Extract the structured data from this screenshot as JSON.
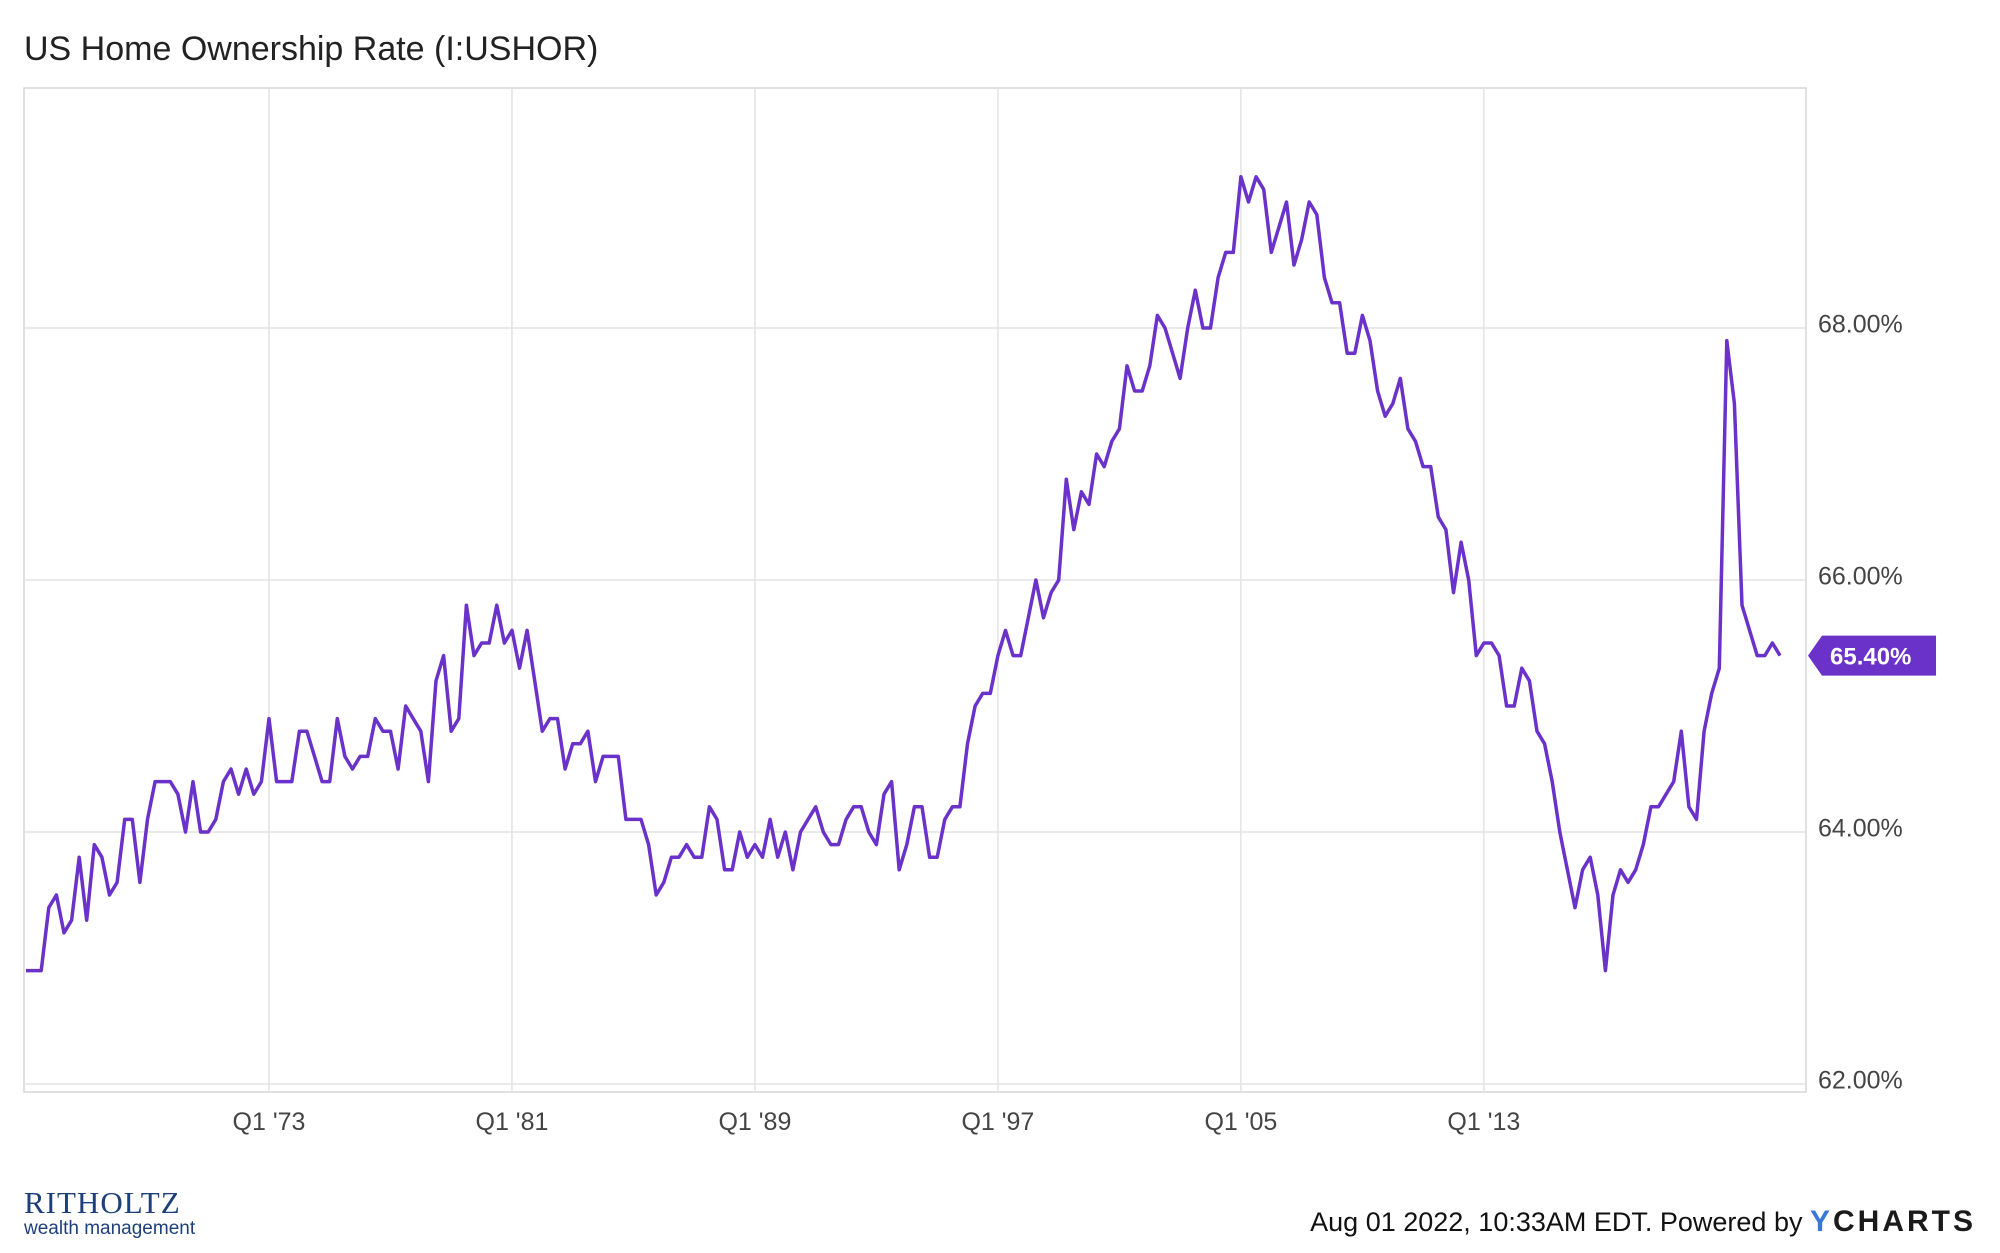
{
  "title": "US Home Ownership Rate (I:USHOR)",
  "footer": {
    "timestamp": "Aug 01 2022, 10:33AM EDT. Powered by",
    "brand_y": "Y",
    "brand_rest": "CHARTS"
  },
  "logo": {
    "name": "RITHOLTZ",
    "tagline": "wealth management"
  },
  "chart_data": {
    "type": "line",
    "x_start": "Q1 '65",
    "x_step": "quarter",
    "xticks": [
      "Q1 '73",
      "Q1 '81",
      "Q1 '89",
      "Q1 '97",
      "Q1 '05",
      "Q1 '13"
    ],
    "xtick_index": [
      32,
      64,
      96,
      128,
      160,
      192
    ],
    "yticks": [
      "62.00%",
      "64.00%",
      "66.00%",
      "68.00%"
    ],
    "ytick_values": [
      62,
      64,
      66,
      68
    ],
    "ylim": [
      62,
      70
    ],
    "grid": true,
    "line_color": "#6a32c9",
    "last_value_label": "65.40%",
    "series": [
      {
        "values": [
          62.9,
          62.9,
          62.9,
          63.4,
          63.5,
          63.2,
          63.3,
          63.8,
          63.3,
          63.9,
          63.8,
          63.5,
          63.6,
          64.1,
          64.1,
          63.6,
          64.1,
          64.4,
          64.4,
          64.4,
          64.3,
          64.0,
          64.4,
          64.0,
          64.0,
          64.1,
          64.4,
          64.5,
          64.3,
          64.5,
          64.3,
          64.4,
          64.9,
          64.4,
          64.4,
          64.4,
          64.8,
          64.8,
          64.6,
          64.4,
          64.4,
          64.9,
          64.6,
          64.5,
          64.6,
          64.6,
          64.9,
          64.8,
          64.8,
          64.5,
          65.0,
          64.9,
          64.8,
          64.4,
          65.2,
          65.4,
          64.8,
          64.9,
          65.8,
          65.4,
          65.5,
          65.5,
          65.8,
          65.5,
          65.6,
          65.3,
          65.6,
          65.2,
          64.8,
          64.9,
          64.9,
          64.5,
          64.7,
          64.7,
          64.8,
          64.4,
          64.6,
          64.6,
          64.6,
          64.1,
          64.1,
          64.1,
          63.9,
          63.5,
          63.6,
          63.8,
          63.8,
          63.9,
          63.8,
          63.8,
          64.2,
          64.1,
          63.7,
          63.7,
          64.0,
          63.8,
          63.9,
          63.8,
          64.1,
          63.8,
          64.0,
          63.7,
          64.0,
          64.1,
          64.2,
          64.0,
          63.9,
          63.9,
          64.1,
          64.2,
          64.2,
          64.0,
          63.9,
          64.3,
          64.4,
          63.7,
          63.9,
          64.2,
          64.2,
          63.8,
          63.8,
          64.1,
          64.2,
          64.2,
          64.7,
          65.0,
          65.1,
          65.1,
          65.4,
          65.6,
          65.4,
          65.4,
          65.7,
          66.0,
          65.7,
          65.9,
          66.0,
          66.8,
          66.4,
          66.7,
          66.6,
          67.0,
          66.9,
          67.1,
          67.2,
          67.7,
          67.5,
          67.5,
          67.7,
          68.1,
          68.0,
          67.8,
          67.6,
          68.0,
          68.3,
          68.0,
          68.0,
          68.4,
          68.6,
          68.6,
          69.2,
          69.0,
          69.2,
          69.1,
          68.6,
          68.8,
          69.0,
          68.5,
          68.7,
          69.0,
          68.9,
          68.4,
          68.2,
          68.2,
          67.8,
          67.8,
          68.1,
          67.9,
          67.5,
          67.3,
          67.4,
          67.6,
          67.2,
          67.1,
          66.9,
          66.9,
          66.5,
          66.4,
          65.9,
          66.3,
          66.0,
          65.4,
          65.5,
          65.5,
          65.4,
          65.0,
          65.0,
          65.3,
          65.2,
          64.8,
          64.7,
          64.4,
          64.0,
          63.7,
          63.4,
          63.7,
          63.8,
          63.5,
          62.9,
          63.5,
          63.7,
          63.6,
          63.7,
          63.9,
          64.2,
          64.2,
          64.3,
          64.4,
          64.8,
          64.2,
          64.1,
          64.8,
          65.1,
          65.3,
          67.9,
          67.4,
          65.8,
          65.6,
          65.4,
          65.4,
          65.5,
          65.4
        ]
      }
    ]
  }
}
